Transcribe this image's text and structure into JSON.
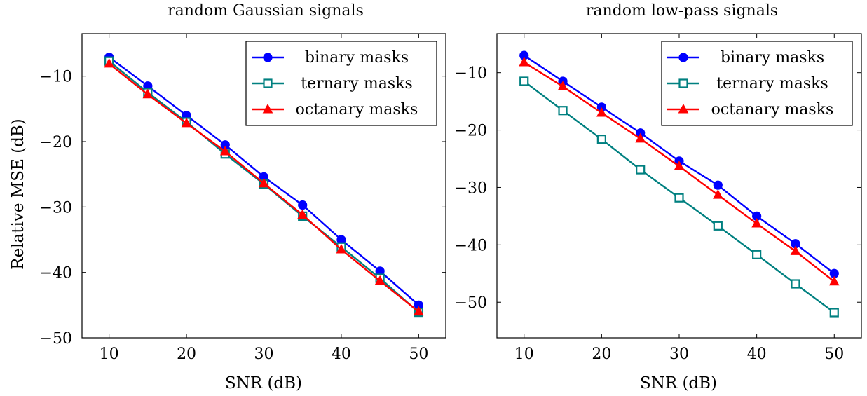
{
  "colors": {
    "binary": "#0000ff",
    "ternary": "#008080",
    "octanary": "#ff0000",
    "binary_marker": "#0000ff",
    "octanary_marker": "#ff0000"
  },
  "chart_data": [
    {
      "type": "line",
      "title": "random Gaussian signals",
      "xlabel": "SNR (dB)",
      "ylabel": "Relative MSE (dB)",
      "xlim": [
        6.5,
        53.5
      ],
      "ylim": [
        -50,
        -3.5
      ],
      "xticks": [
        10,
        20,
        30,
        40,
        50
      ],
      "xtick_labels": [
        "10",
        "20",
        "30",
        "40",
        "50"
      ],
      "yticks": [
        -10,
        -20,
        -30,
        -40,
        -50
      ],
      "ytick_labels": [
        "−10",
        "−20",
        "−30",
        "−40",
        "−50"
      ],
      "grid": false,
      "legend_position": "top-right",
      "x": [
        10,
        15,
        20,
        25,
        30,
        35,
        40,
        45,
        50
      ],
      "series": [
        {
          "name": "binary masks",
          "marker": "circle",
          "color": "#0000ff",
          "values": [
            -7.1,
            -11.5,
            -16.0,
            -20.5,
            -25.4,
            -29.7,
            -35.0,
            -39.8,
            -45.0
          ]
        },
        {
          "name": "ternary masks",
          "marker": "square",
          "color": "#008080",
          "values": [
            -7.7,
            -12.5,
            -17.0,
            -21.9,
            -26.5,
            -31.4,
            -36.1,
            -40.9,
            -46.1
          ]
        },
        {
          "name": "octanary masks",
          "marker": "triangle",
          "color": "#ff0000",
          "values": [
            -8.1,
            -12.8,
            -17.2,
            -21.5,
            -26.4,
            -31.2,
            -36.5,
            -41.3,
            -46.0
          ]
        }
      ]
    },
    {
      "type": "line",
      "title": "random low-pass signals",
      "xlabel": "SNR (dB)",
      "ylabel": "",
      "xlim": [
        6.5,
        53.5
      ],
      "ylim": [
        -56.2,
        -3.2
      ],
      "xticks": [
        10,
        20,
        30,
        40,
        50
      ],
      "xtick_labels": [
        "10",
        "20",
        "30",
        "40",
        "50"
      ],
      "yticks": [
        -10,
        -20,
        -30,
        -40,
        -50
      ],
      "ytick_labels": [
        "−10",
        "−20",
        "−30",
        "−40",
        "−50"
      ],
      "grid": false,
      "legend_position": "top-right",
      "x": [
        10,
        15,
        20,
        25,
        30,
        35,
        40,
        45,
        50
      ],
      "series": [
        {
          "name": "binary masks",
          "marker": "circle",
          "color": "#0000ff",
          "values": [
            -7.0,
            -11.5,
            -16.0,
            -20.5,
            -25.4,
            -29.6,
            -35.0,
            -39.8,
            -45.0
          ]
        },
        {
          "name": "ternary masks",
          "marker": "square",
          "color": "#008080",
          "values": [
            -11.5,
            -16.6,
            -21.6,
            -26.9,
            -31.8,
            -36.7,
            -41.7,
            -46.8,
            -51.8
          ]
        },
        {
          "name": "octanary masks",
          "marker": "triangle",
          "color": "#ff0000",
          "values": [
            -8.2,
            -12.4,
            -17.0,
            -21.5,
            -26.3,
            -31.3,
            -36.3,
            -41.1,
            -46.4
          ]
        }
      ]
    }
  ]
}
